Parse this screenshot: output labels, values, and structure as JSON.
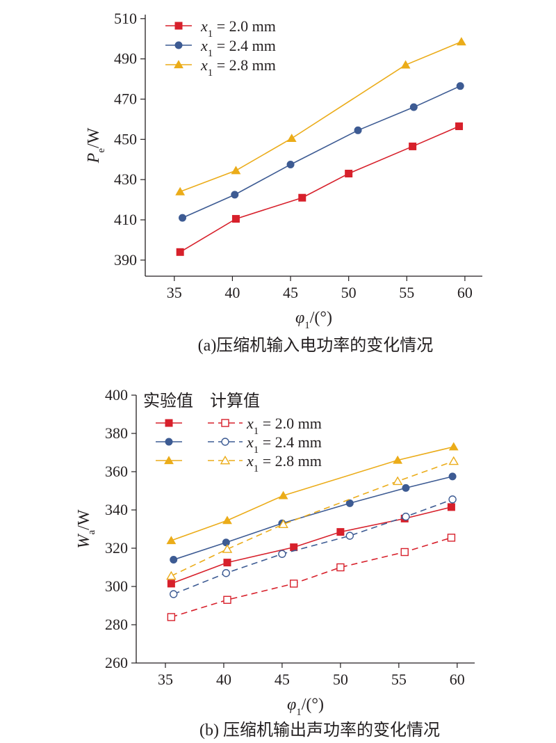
{
  "colors": {
    "x1_2_0": "#d7202b",
    "x1_2_4": "#3d5b93",
    "x1_2_8": "#ebac19",
    "axis": "#231f20"
  },
  "chart_data": [
    {
      "id": "a",
      "type": "line",
      "caption": "(a)压缩机输入电功率的变化情况",
      "xlabel": {
        "symbol": "φ",
        "sub": "1",
        "rest": "/(°)"
      },
      "ylabel": {
        "symbol": "P",
        "sub": "e",
        "rest": "/W"
      },
      "xlim": [
        32.5,
        61.5
      ],
      "ylim": [
        382,
        512
      ],
      "xticks": [
        35,
        40,
        45,
        50,
        55,
        60
      ],
      "yticks": [
        390,
        410,
        430,
        450,
        470,
        490,
        510
      ],
      "legend_position": "top-left",
      "series": [
        {
          "name": {
            "symbol": "x",
            "sub": "1",
            "rest": " = 2.0 mm"
          },
          "color": "#d7202b",
          "marker": "square",
          "filled": true,
          "dashed": false,
          "x": [
            35.5,
            40.3,
            46.0,
            50.0,
            55.5,
            59.5
          ],
          "y": [
            394,
            410.5,
            421,
            433,
            446.5,
            456.5
          ]
        },
        {
          "name": {
            "symbol": "x",
            "sub": "1",
            "rest": " = 2.4 mm"
          },
          "color": "#3d5b93",
          "marker": "circle",
          "filled": true,
          "dashed": false,
          "x": [
            35.7,
            40.2,
            45.0,
            50.8,
            55.6,
            59.6
          ],
          "y": [
            411,
            422.5,
            437.5,
            454.5,
            466,
            476.5
          ]
        },
        {
          "name": {
            "symbol": "x",
            "sub": "1",
            "rest": " = 2.8 mm"
          },
          "color": "#ebac19",
          "marker": "triangle",
          "filled": true,
          "dashed": false,
          "x": [
            35.5,
            40.3,
            45.1,
            54.9,
            59.7
          ],
          "y": [
            424,
            434.5,
            450.5,
            487,
            498.5
          ]
        }
      ]
    },
    {
      "id": "b",
      "type": "line",
      "caption": "(b) 压缩机输出声功率的变化情况",
      "xlabel": {
        "symbol": "φ",
        "sub": "1",
        "rest": "/(°)"
      },
      "ylabel": {
        "symbol": "W",
        "sub": "a",
        "rest": "/W"
      },
      "xlim": [
        32.5,
        61.5
      ],
      "ylim": [
        260,
        400
      ],
      "xticks": [
        35,
        40,
        45,
        50,
        55,
        60
      ],
      "yticks": [
        260,
        280,
        300,
        320,
        340,
        360,
        380,
        400
      ],
      "legend_position": "top-left",
      "legend_headers": [
        "实验值",
        "计算值"
      ],
      "legend_labels": [
        {
          "symbol": "x",
          "sub": "1",
          "rest": " = 2.0 mm"
        },
        {
          "symbol": "x",
          "sub": "1",
          "rest": " = 2.4 mm"
        },
        {
          "symbol": "x",
          "sub": "1",
          "rest": " = 2.8 mm"
        }
      ],
      "series": [
        {
          "group": "实验值",
          "color": "#d7202b",
          "marker": "square",
          "filled": true,
          "dashed": false,
          "x": [
            35.5,
            40.3,
            46.0,
            50.0,
            55.5,
            59.5
          ],
          "y": [
            301.5,
            312.5,
            320.5,
            328.5,
            335.5,
            341.5
          ]
        },
        {
          "group": "实验值",
          "color": "#3d5b93",
          "marker": "circle",
          "filled": true,
          "dashed": false,
          "x": [
            35.7,
            40.2,
            45.0,
            50.8,
            55.6,
            59.6
          ],
          "y": [
            314,
            323,
            333,
            343.5,
            351.5,
            357.5
          ]
        },
        {
          "group": "实验值",
          "color": "#ebac19",
          "marker": "triangle",
          "filled": true,
          "dashed": false,
          "x": [
            35.5,
            40.3,
            45.1,
            54.9,
            59.7
          ],
          "y": [
            324,
            334.5,
            347.5,
            366,
            373
          ]
        },
        {
          "group": "计算值",
          "color": "#d7202b",
          "marker": "square",
          "filled": false,
          "dashed": true,
          "x": [
            35.5,
            40.3,
            46.0,
            50.0,
            55.5,
            59.5
          ],
          "y": [
            284,
            293,
            301.5,
            310,
            318,
            325.5
          ]
        },
        {
          "group": "计算值",
          "color": "#3d5b93",
          "marker": "circle",
          "filled": false,
          "dashed": true,
          "x": [
            35.7,
            40.2,
            45.0,
            50.8,
            55.6,
            59.6
          ],
          "y": [
            296,
            307,
            317,
            326.5,
            336.5,
            345.5
          ]
        },
        {
          "group": "计算值",
          "color": "#ebac19",
          "marker": "triangle",
          "filled": false,
          "dashed": true,
          "x": [
            35.5,
            40.3,
            45.1,
            54.9,
            59.7
          ],
          "y": [
            305.5,
            319.5,
            332.5,
            355,
            365.5
          ]
        }
      ]
    }
  ]
}
